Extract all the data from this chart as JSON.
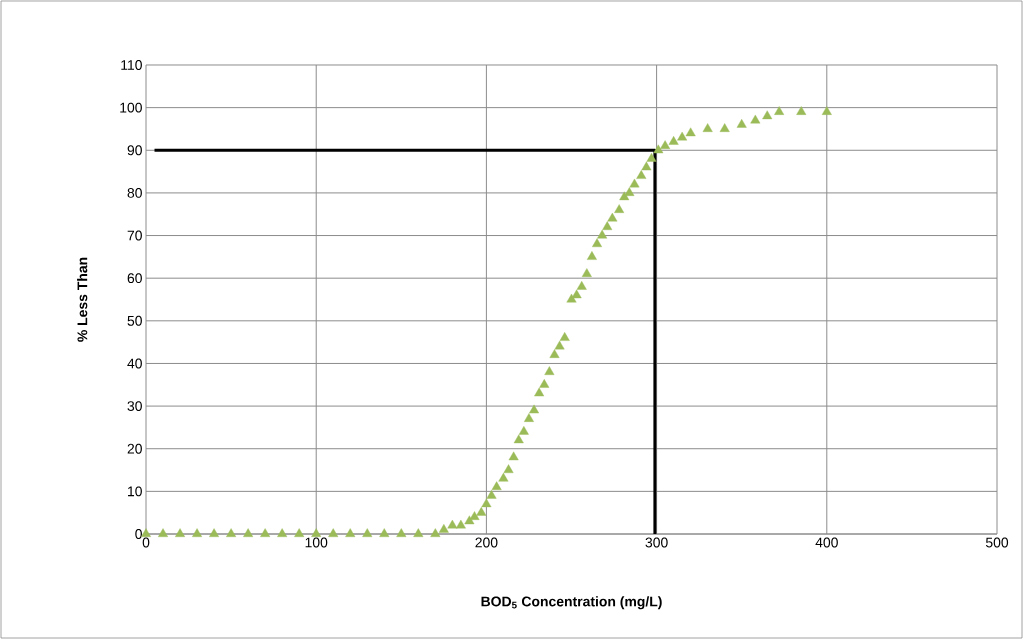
{
  "chart_data": {
    "type": "scatter",
    "xlabel": "BOD$_{5}$ Concentration (mg/L)",
    "ylabel": "% Less Than",
    "xlim": [
      0,
      500
    ],
    "ylim": [
      0,
      110
    ],
    "xticks": [
      0,
      100,
      200,
      300,
      400,
      500
    ],
    "yticks": [
      0,
      10,
      20,
      30,
      40,
      50,
      60,
      70,
      80,
      90,
      100,
      110
    ],
    "grid": true,
    "marker": "triangle",
    "series": [
      {
        "color": "#9bbb59",
        "x": [
          0,
          10,
          20,
          30,
          40,
          50,
          60,
          70,
          80,
          90,
          100,
          110,
          120,
          130,
          140,
          150,
          160,
          170,
          175,
          180,
          185,
          190,
          193,
          197,
          200,
          203,
          206,
          210,
          213,
          216,
          219,
          222,
          225,
          228,
          231,
          234,
          237,
          240,
          243,
          246,
          250,
          253,
          256,
          259,
          262,
          265,
          268,
          271,
          274,
          278,
          281,
          284,
          287,
          291,
          294,
          297,
          301,
          305,
          310,
          315,
          320,
          330,
          340,
          350,
          358,
          365,
          372,
          385,
          400
        ],
        "values": [
          0,
          0,
          0,
          0,
          0,
          0,
          0,
          0,
          0,
          0,
          0,
          0,
          0,
          0,
          0,
          0,
          0,
          0,
          1,
          2,
          2,
          3,
          4,
          5,
          7,
          9,
          11,
          13,
          15,
          18,
          22,
          24,
          27,
          29,
          33,
          35,
          38,
          42,
          44,
          46,
          55,
          56,
          58,
          61,
          65,
          68,
          70,
          72,
          74,
          76,
          79,
          80,
          82,
          84,
          86,
          88,
          90,
          91,
          92,
          93,
          94,
          95,
          95,
          96,
          97,
          98,
          99,
          99,
          99
        ]
      },
      {
        "type": "line",
        "marker": "none",
        "color": "#000000",
        "x": [
          5,
          299,
          299
        ],
        "values": [
          90,
          90,
          0
        ]
      }
    ]
  }
}
